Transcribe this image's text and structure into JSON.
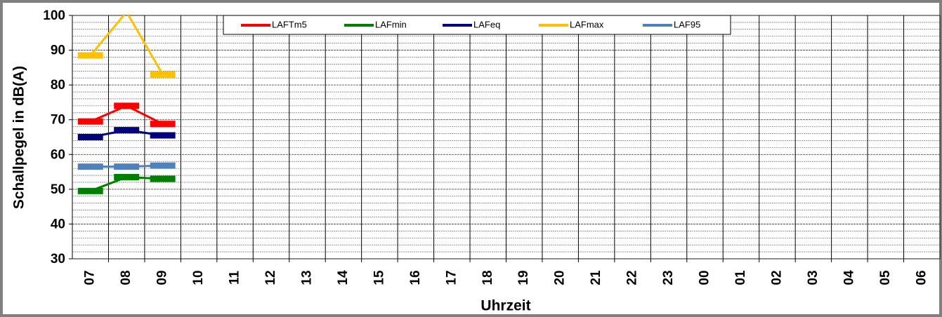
{
  "chart_data": {
    "type": "line",
    "categories": [
      "07",
      "08",
      "09",
      "10",
      "11",
      "12",
      "13",
      "14",
      "15",
      "16",
      "17",
      "18",
      "19",
      "20",
      "21",
      "22",
      "23",
      "00",
      "01",
      "02",
      "03",
      "04",
      "05",
      "06"
    ],
    "series": [
      {
        "name": "LAFTm5",
        "color": "#ff0000",
        "values": [
          69.5,
          74,
          68.8,
          null,
          null,
          null,
          null,
          null,
          null,
          null,
          null,
          null,
          null,
          null,
          null,
          null,
          null,
          null,
          null,
          null,
          null,
          null,
          null,
          null
        ]
      },
      {
        "name": "LAFmin",
        "color": "#008000",
        "values": [
          49.5,
          53.5,
          53,
          null,
          null,
          null,
          null,
          null,
          null,
          null,
          null,
          null,
          null,
          null,
          null,
          null,
          null,
          null,
          null,
          null,
          null,
          null,
          null,
          null
        ]
      },
      {
        "name": "LAFeq",
        "color": "#000080",
        "values": [
          65,
          67,
          65.5,
          null,
          null,
          null,
          null,
          null,
          null,
          null,
          null,
          null,
          null,
          null,
          null,
          null,
          null,
          null,
          null,
          null,
          null,
          null,
          null,
          null
        ]
      },
      {
        "name": "LAFmax",
        "color": "#ffc000",
        "values": [
          88.5,
          101,
          83,
          null,
          null,
          null,
          null,
          null,
          null,
          null,
          null,
          null,
          null,
          null,
          null,
          null,
          null,
          null,
          null,
          null,
          null,
          null,
          null,
          null
        ]
      },
      {
        "name": "LAF95",
        "color": "#4f81bd",
        "values": [
          56.5,
          56.5,
          56.8,
          null,
          null,
          null,
          null,
          null,
          null,
          null,
          null,
          null,
          null,
          null,
          null,
          null,
          null,
          null,
          null,
          null,
          null,
          null,
          null,
          null
        ]
      }
    ],
    "y_label": "Schallpegel in dB(A)",
    "x_label": "Uhrzeit",
    "ylim": [
      30,
      100
    ],
    "yticks": [
      30,
      40,
      50,
      60,
      70,
      80,
      90,
      100
    ],
    "grid": true,
    "minor_grid": true,
    "legend": "top"
  }
}
